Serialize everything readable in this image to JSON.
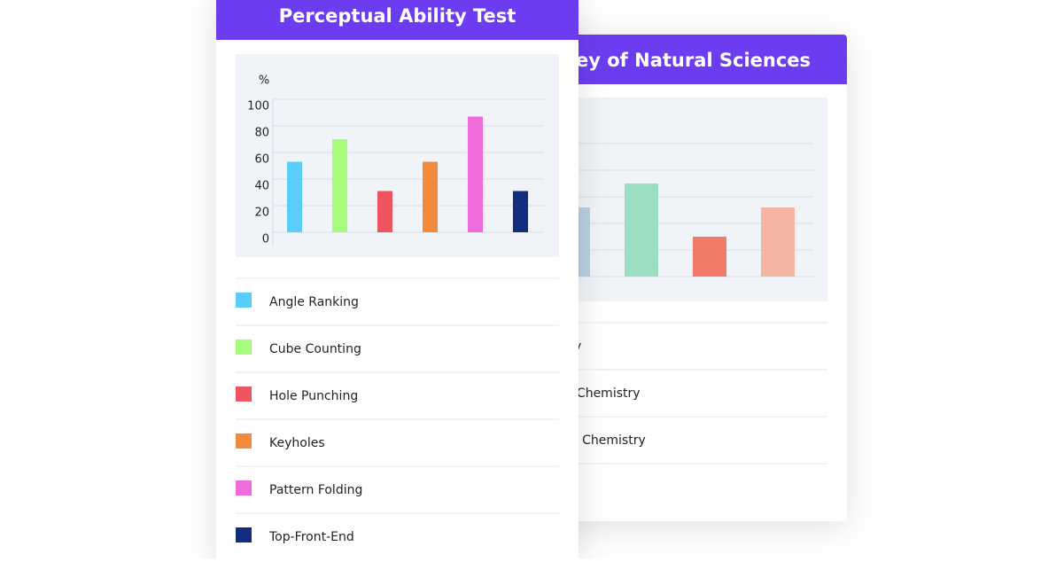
{
  "chart_data": [
    {
      "type": "bar",
      "title": "ey of Natural Sciences",
      "categories": [
        null,
        null,
        null,
        null
      ],
      "values": [
        2.6,
        3.5,
        1.5,
        2.6
      ],
      "colors": [
        "#b7cfe0",
        "#9adfbf",
        "#f07b69",
        "#f4b5a3"
      ],
      "ylim": [
        0,
        5
      ],
      "yticks": [
        1,
        2,
        3,
        4,
        5
      ],
      "grid": true,
      "tick_labels": false,
      "legend_labels": [
        "y",
        "al Chemistry",
        "c Chemistry"
      ]
    },
    {
      "type": "bar",
      "title": "Perceptual Ability Test",
      "ylabel": "%",
      "categories": [
        "Angle Ranking",
        "Cube Counting",
        "Hole Punching",
        "Keyholes",
        "Pattern Folding",
        "Top-Front-End"
      ],
      "values": [
        53,
        70,
        31,
        53,
        87,
        31
      ],
      "colors": [
        "#5bcdfb",
        "#a6fb7c",
        "#ee5561",
        "#f28a3d",
        "#ee6bd9",
        "#122d7e"
      ],
      "ylim": [
        0,
        100
      ],
      "yticks": [
        0,
        20,
        40,
        60,
        80,
        100
      ],
      "grid": true,
      "tick_labels": true
    }
  ]
}
